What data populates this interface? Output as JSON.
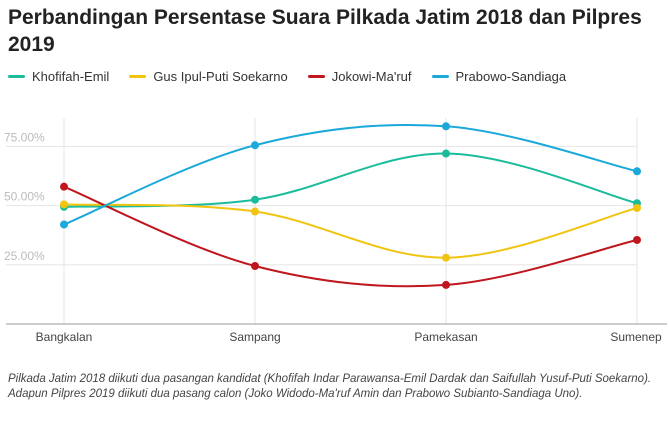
{
  "title": "Perbandingan Persentase Suara Pilkada Jatim 2018 dan Pilpres 2019",
  "caption": "Pilkada Jatim 2018 diikuti dua pasangan kandidat (Khofifah Indar Parawansa-Emil Dardak dan Saifullah Yusuf-Puti Soekarno). Adapun Pilpres 2019 diikuti dua pasang calon (Joko Widodo-Ma'ruf Amin dan Prabowo Subianto-Sandiaga Uno).",
  "chart_data": {
    "type": "line",
    "categories": [
      "Bangkalan",
      "Sampang",
      "Pamekasan",
      "Sumenep"
    ],
    "ylim": [
      0,
      87
    ],
    "yticks": [
      25,
      50,
      75
    ],
    "ytick_labels": [
      "25.00%",
      "50.00%",
      "75.00%"
    ],
    "grid": true,
    "legend_position": "top-left",
    "series": [
      {
        "name": "Khofifah-Emil",
        "color": "#1abc9c",
        "values": [
          49.5,
          52.5,
          72,
          51
        ]
      },
      {
        "name": "Gus Ipul-Puti Soekarno",
        "color": "#f1c40f",
        "values": [
          50.5,
          47.5,
          28,
          49
        ]
      },
      {
        "name": "Jokowi-Ma'ruf",
        "color": "#c0171f",
        "values": [
          58,
          24.5,
          16.5,
          35.5
        ]
      },
      {
        "name": "Prabowo-Sandiaga",
        "color": "#1ba9d9",
        "values": [
          42,
          75.5,
          83.5,
          64.5
        ]
      }
    ]
  }
}
